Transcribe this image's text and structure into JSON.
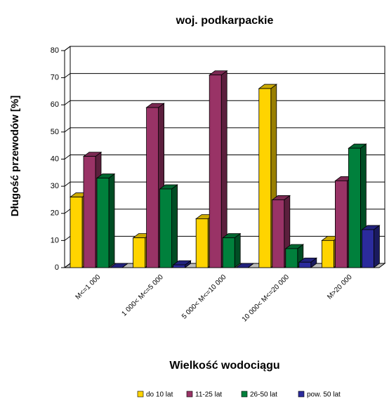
{
  "chart_data": {
    "type": "bar3d",
    "title": "woj. podkarpackie",
    "y_label": "Długość przewodów [%]",
    "x_label": "Wielkość wodociągu",
    "categories": [
      "M<=1 000",
      "1 000< M<=5 000",
      "5 000< M<=10 000",
      "10 000< M<=20 000",
      "M>20 000"
    ],
    "series": [
      {
        "name": "do 10 lat",
        "color": "#ffd400",
        "values": [
          26,
          11,
          18,
          66,
          10
        ]
      },
      {
        "name": "11-25 lat",
        "color": "#993366",
        "values": [
          41,
          59,
          71,
          25,
          32
        ]
      },
      {
        "name": "26-50 lat",
        "color": "#00803c",
        "values": [
          33,
          29,
          11,
          7,
          44
        ]
      },
      {
        "name": "pow. 50 lat",
        "color": "#2b2b9c",
        "values": [
          0,
          1,
          0,
          2,
          14
        ]
      }
    ],
    "ylim": [
      0,
      80
    ],
    "yticks": [
      0,
      10,
      20,
      30,
      40,
      50,
      60,
      70,
      80
    ],
    "grid": true,
    "legend": "bottom"
  }
}
